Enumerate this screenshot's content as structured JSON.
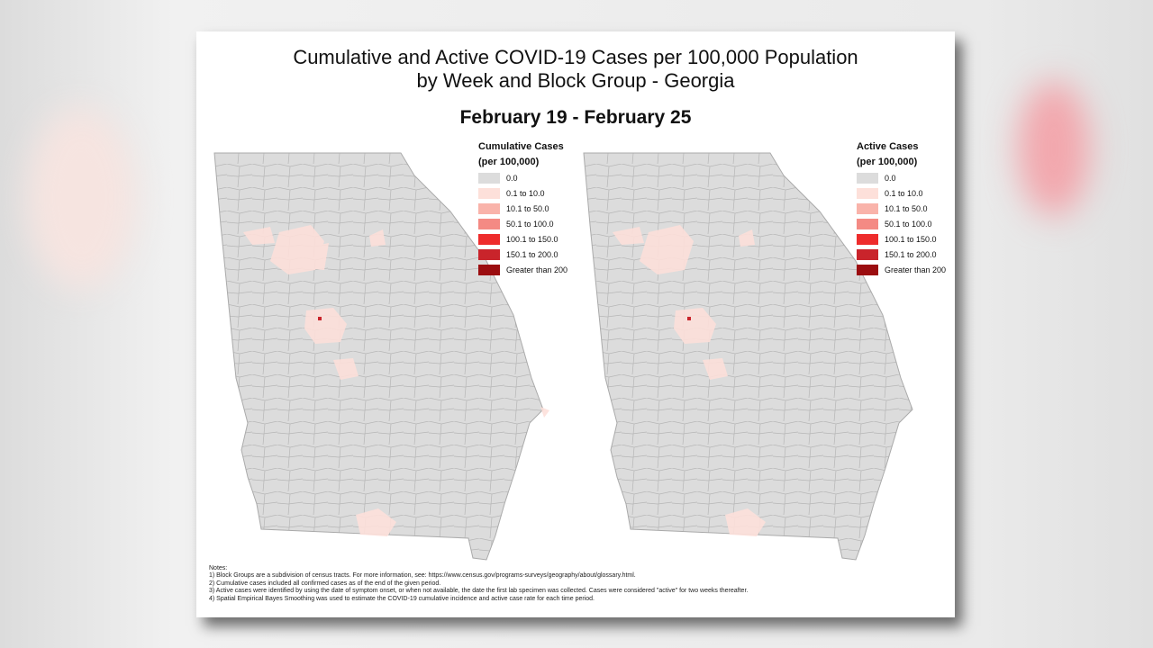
{
  "title_line1": "Cumulative and Active COVID-19 Cases per 100,000 Population",
  "title_line2": "by Week and Block Group - Georgia",
  "period": "February 19 - February 25",
  "legends": [
    {
      "title": "Cumulative Cases",
      "unit": "(per 100,000)"
    },
    {
      "title": "Active Cases",
      "unit": "(per 100,000)"
    }
  ],
  "classes": [
    {
      "label": "0.0",
      "color": "#dcdcdc"
    },
    {
      "label": "0.1 to 10.0",
      "color": "#fde0da"
    },
    {
      "label": "10.1 to 50.0",
      "color": "#f9b3aa"
    },
    {
      "label": "50.1 to 100.0",
      "color": "#f48a84"
    },
    {
      "label": "100.1 to 150.0",
      "color": "#ee2c2c"
    },
    {
      "label": "150.1 to 200.0",
      "color": "#c9242b"
    },
    {
      "label": "Greater than 200",
      "color": "#9b0d10"
    }
  ],
  "notes": [
    "Notes:",
    "1) Block Groups are a subdivision of census tracts. For more information, see: https://www.census.gov/programs-surveys/geography/about/glossary.html.",
    "2) Cumulative cases included all confirmed cases as of the end of the given period.",
    "3) Active cases were identified by using the date of symptom onset, or when not available, the date the first lab specimen was collected. Cases were considered \"active\" for two weeks thereafter.",
    "4) Spatial Empirical Bayes Smoothing was used to estimate the COVID-19 cumulative incidence and active case rate for each time period."
  ]
}
